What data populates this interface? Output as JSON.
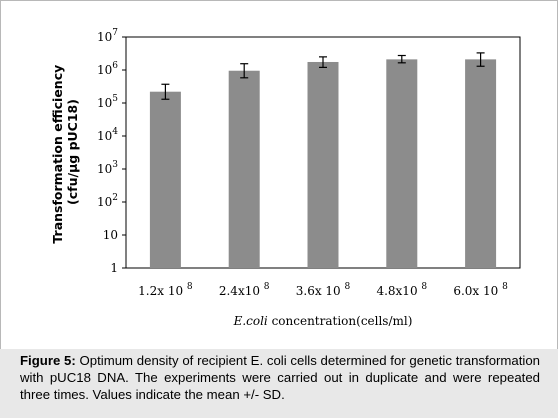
{
  "chart_data": {
    "type": "bar",
    "categories": [
      "1.2x 10",
      "2.4x10",
      "3.6x 10",
      "4.8x10",
      "6.0x 10"
    ],
    "category_exponent": "8",
    "values": [
      220000,
      950000,
      1750000,
      2100000,
      2100000
    ],
    "error_low": [
      130000,
      580000,
      1200000,
      1650000,
      1300000
    ],
    "error_high": [
      370000,
      1550000,
      2500000,
      2750000,
      3300000
    ],
    "ylabel_line1": "Transformation efficiency",
    "ylabel_line2": "(cfu/μg pUC18)",
    "xlabel_italic": "E.coli",
    "xlabel_rest": " concentration(cells/ml)",
    "yscale": "log",
    "ylim": [
      1,
      10000000
    ],
    "ytick_values": [
      1,
      10,
      100,
      1000,
      10000,
      100000,
      1000000,
      10000000
    ],
    "ytick_labels": [
      {
        "base": "1",
        "exp": ""
      },
      {
        "base": "10",
        "exp": ""
      },
      {
        "base": "10",
        "exp": "2"
      },
      {
        "base": "10",
        "exp": "3"
      },
      {
        "base": "10",
        "exp": "4"
      },
      {
        "base": "10",
        "exp": "5"
      },
      {
        "base": "10",
        "exp": "6"
      },
      {
        "base": "10",
        "exp": "7"
      }
    ],
    "bar_color": "#8c8c8c",
    "grid": false,
    "legend": "none"
  },
  "caption": {
    "label": "Figure 5:",
    "text": " Optimum density of recipient E. coli cells determined for genetic transformation with pUC18 DNA. The experiments were carried out in duplicate and were repeated three times. Values indicate the mean +/- SD."
  }
}
